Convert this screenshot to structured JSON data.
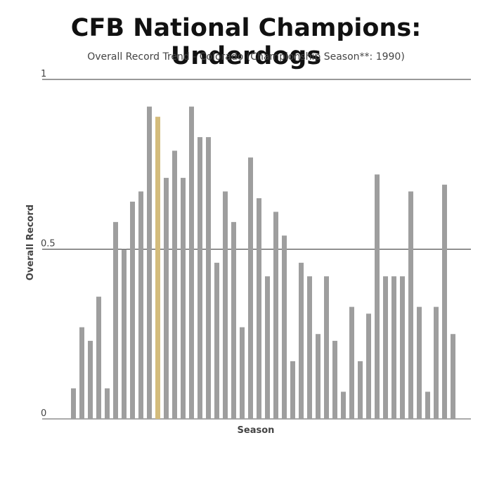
{
  "title": "CFB National Champions: Underdogs",
  "subtitle": "Overall Record Trend - Colorado (Championship Season**: 1990)",
  "colors": {
    "bar": "#9e9e9e",
    "highlight": "#d4bc7c",
    "grid": "#333333"
  },
  "chart_data": {
    "type": "bar",
    "title": "CFB National Champions: Underdogs",
    "subtitle": "Overall Record Trend - Colorado (Championship Season**: 1990)",
    "xlabel": "Season",
    "ylabel": "Overall Record",
    "ylim": [
      0,
      1
    ],
    "yticks": [
      {
        "value": 0,
        "label": "0"
      },
      {
        "value": 0.5,
        "label": "0.5"
      },
      {
        "value": 1,
        "label": "1"
      }
    ],
    "grid": true,
    "highlight_index": 10,
    "values": [
      0.09,
      0.27,
      0.23,
      0.36,
      0.09,
      0.58,
      0.5,
      0.64,
      0.67,
      0.92,
      0.89,
      0.71,
      0.79,
      0.71,
      0.92,
      0.83,
      0.83,
      0.46,
      0.67,
      0.58,
      0.27,
      0.77,
      0.65,
      0.42,
      0.61,
      0.54,
      0.17,
      0.46,
      0.42,
      0.25,
      0.42,
      0.23,
      0.08,
      0.33,
      0.17,
      0.31,
      0.72,
      0.42,
      0.42,
      0.42,
      0.67,
      0.33,
      0.08,
      0.33,
      0.69,
      0.25
    ]
  }
}
